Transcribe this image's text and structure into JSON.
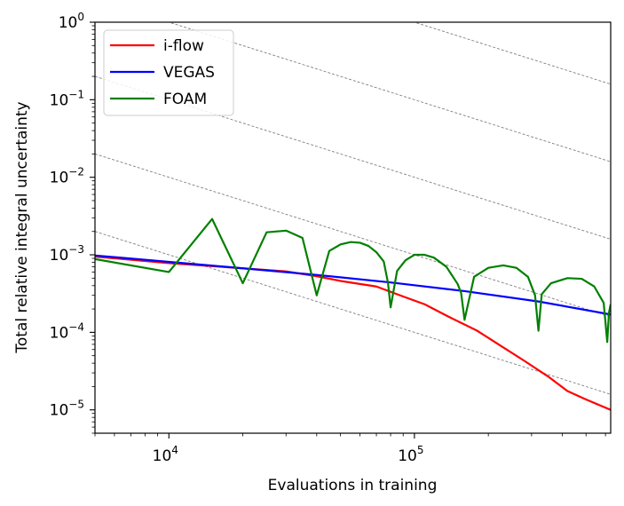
{
  "chart_data": {
    "type": "line",
    "title": "",
    "xlabel": "Evaluations in training",
    "ylabel": "Total relative integral uncertainty",
    "xscale": "log",
    "yscale": "log",
    "xlim": [
      5000,
      630000
    ],
    "ylim": [
      5e-06,
      1
    ],
    "legend_position": "top-left",
    "x_ticks": [
      {
        "value": 10000,
        "base": "10",
        "exp": "4"
      },
      {
        "value": 100000,
        "base": "10",
        "exp": "5"
      }
    ],
    "y_ticks": [
      {
        "value": 1,
        "base": "10",
        "exp": "0"
      },
      {
        "value": 0.1,
        "base": "10",
        "exp": "−1"
      },
      {
        "value": 0.01,
        "base": "10",
        "exp": "−2"
      },
      {
        "value": 0.001,
        "base": "10",
        "exp": "−3"
      },
      {
        "value": 0.0001,
        "base": "10",
        "exp": "−4"
      },
      {
        "value": 1e-05,
        "base": "10",
        "exp": "−5"
      }
    ],
    "reference_lines": {
      "slope": -1,
      "anchors_at_x_1e4": [
        100,
        10,
        1,
        0.1,
        0.01,
        0.001
      ]
    },
    "series": [
      {
        "name": "i-flow",
        "color": "#ff0000",
        "x": [
          5000,
          10000,
          20000,
          30000,
          40000,
          50000,
          70000,
          90000,
          110000,
          140000,
          180000,
          220000,
          280000,
          350000,
          420000,
          500000,
          630000
        ],
        "y": [
          0.00095,
          0.00078,
          0.00067,
          0.00061,
          0.00053,
          0.00046,
          0.00039,
          0.00029,
          0.00023,
          0.000155,
          0.000105,
          7e-05,
          4.3e-05,
          2.7e-05,
          1.75e-05,
          1.36e-05,
          1e-05
        ]
      },
      {
        "name": "VEGAS",
        "color": "#0000ff",
        "x": [
          5000,
          10000,
          20000,
          40000,
          80000,
          160000,
          320000,
          630000
        ],
        "y": [
          0.00098,
          0.00081,
          0.00067,
          0.00055,
          0.00044,
          0.00034,
          0.00025,
          0.00017
        ]
      },
      {
        "name": "FOAM",
        "color": "#008000",
        "x": [
          5000,
          10000,
          15000,
          20000,
          25000,
          30000,
          35000,
          40000,
          45000,
          50000,
          55000,
          60000,
          65000,
          70000,
          75000,
          78000,
          80000,
          85000,
          92000,
          100000,
          110000,
          120000,
          135000,
          150000,
          155000,
          160000,
          175000,
          200000,
          230000,
          260000,
          290000,
          310000,
          320000,
          330000,
          360000,
          420000,
          480000,
          540000,
          590000,
          610000,
          620000,
          630000
        ],
        "y": [
          0.00088,
          0.0006,
          0.0029,
          0.00043,
          0.00195,
          0.00205,
          0.00165,
          0.0003,
          0.00112,
          0.00136,
          0.00146,
          0.00143,
          0.0013,
          0.00108,
          0.00082,
          0.00044,
          0.00021,
          0.00062,
          0.00085,
          0.001,
          0.001,
          0.00092,
          0.0007,
          0.00042,
          0.00032,
          0.000145,
          0.00052,
          0.00068,
          0.00073,
          0.00068,
          0.00052,
          0.0003,
          0.000105,
          0.00031,
          0.00043,
          0.0005,
          0.00049,
          0.00039,
          0.00024,
          7.5e-05,
          0.00018,
          0.00023
        ]
      }
    ]
  }
}
